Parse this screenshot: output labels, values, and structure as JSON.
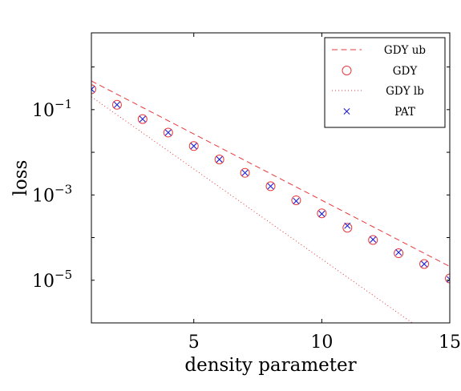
{
  "chart_data": {
    "type": "scatter",
    "xlabel": "density parameter",
    "ylabel": "loss",
    "xlim": [
      1,
      15
    ],
    "ylim_log10": [
      -6.0,
      0.8
    ],
    "yscale": "log",
    "grid": false,
    "legend_position": "top-right",
    "x_ticks": [
      {
        "value": 5,
        "label": "5"
      },
      {
        "value": 10,
        "label": "10"
      },
      {
        "value": 15,
        "label": "15"
      }
    ],
    "y_ticks": [
      {
        "exp": -1,
        "label": "10",
        "sup": "−1"
      },
      {
        "exp": -3,
        "label": "10",
        "sup": "−3"
      },
      {
        "exp": -5,
        "label": "10",
        "sup": "−5"
      }
    ],
    "series": [
      {
        "name": "GDY ub",
        "style": "dashed-line",
        "color": "#e8383a",
        "x": [
          1,
          15
        ],
        "y": [
          0.47,
          2.1e-05
        ]
      },
      {
        "name": "GDY",
        "style": "circle-marker",
        "color": "#e8383a",
        "x": [
          1,
          2,
          3,
          4,
          5,
          6,
          7,
          8,
          9,
          10,
          11,
          12,
          13,
          14,
          15
        ],
        "y": [
          0.3,
          0.13,
          0.06,
          0.029,
          0.014,
          0.0068,
          0.0033,
          0.0016,
          0.00075,
          0.00037,
          0.00017,
          8.8e-05,
          4.3e-05,
          2.4e-05,
          1.1e-05
        ]
      },
      {
        "name": "GDY lb",
        "style": "dotted-line",
        "color": "#e8383a",
        "x": [
          1,
          13.7
        ],
        "y": [
          0.2,
          8.5e-07
        ]
      },
      {
        "name": "PAT",
        "style": "x-marker",
        "color": "#1f1fd6",
        "x": [
          1,
          2,
          3,
          4,
          5,
          6,
          7,
          8,
          9,
          10,
          11,
          12,
          13,
          14,
          15
        ],
        "y": [
          0.3,
          0.13,
          0.06,
          0.029,
          0.014,
          0.0068,
          0.0033,
          0.0016,
          0.00072,
          0.00036,
          0.00019,
          9e-05,
          4.5e-05,
          2.4e-05,
          1.05e-05
        ]
      }
    ]
  }
}
